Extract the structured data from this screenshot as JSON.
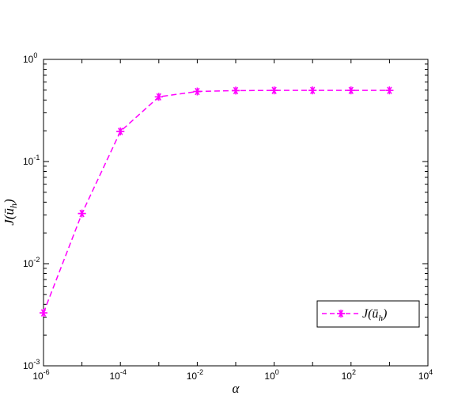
{
  "chart_data": {
    "type": "line",
    "title": "",
    "xlabel": "α",
    "ylabel": "J(ū_h)",
    "xscale": "log",
    "yscale": "log",
    "xlim": [
      1e-06,
      10000.0
    ],
    "ylim": [
      0.001,
      1
    ],
    "grid": false,
    "legend_position": "lower-right",
    "x_ticks": [
      {
        "value": 1e-06,
        "base": "10",
        "exp": "-6"
      },
      {
        "value": 0.0001,
        "base": "10",
        "exp": "-4"
      },
      {
        "value": 0.01,
        "base": "10",
        "exp": "-2"
      },
      {
        "value": 1,
        "base": "10",
        "exp": "0"
      },
      {
        "value": 100.0,
        "base": "10",
        "exp": "2"
      },
      {
        "value": 10000.0,
        "base": "10",
        "exp": "4"
      }
    ],
    "y_ticks": [
      {
        "value": 0.001,
        "base": "10",
        "exp": "-3"
      },
      {
        "value": 0.01,
        "base": "10",
        "exp": "-2"
      },
      {
        "value": 0.1,
        "base": "10",
        "exp": "-1"
      },
      {
        "value": 1,
        "base": "10",
        "exp": "0"
      }
    ],
    "series": [
      {
        "name": "J(ū_h)",
        "color": "#ff00ff",
        "line_style": "dashed",
        "marker": "asterisk",
        "x": [
          1e-06,
          1e-05,
          0.0001,
          0.001,
          0.01,
          0.1,
          1,
          10,
          100,
          1000
        ],
        "y": [
          0.0033,
          0.031,
          0.197,
          0.43,
          0.485,
          0.495,
          0.497,
          0.497,
          0.497,
          0.497
        ]
      }
    ]
  }
}
